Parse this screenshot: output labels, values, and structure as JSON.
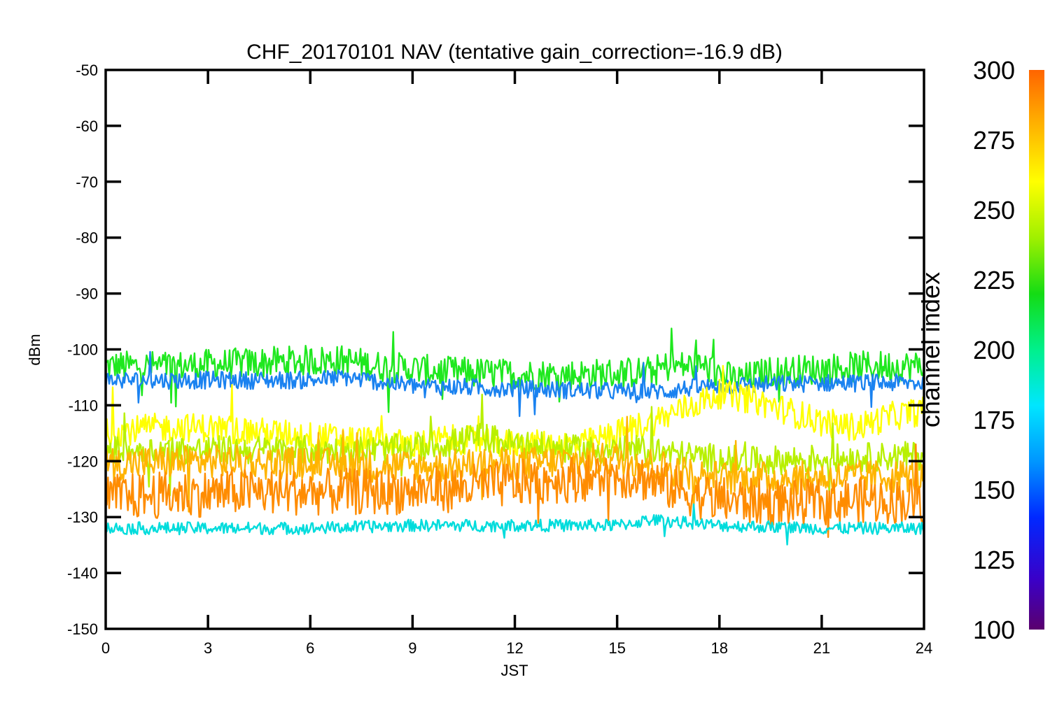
{
  "chart_data": {
    "type": "line",
    "title": "CHF_20170101 NAV (tentative gain_correction=-16.9 dB)",
    "xlabel": "JST",
    "ylabel": "dBm",
    "xlim": [
      0,
      24
    ],
    "ylim": [
      -150,
      -50
    ],
    "xticks": [
      "0",
      "3",
      "6",
      "9",
      "12",
      "15",
      "18",
      "21",
      "24"
    ],
    "yticks": [
      "-50",
      "-60",
      "-70",
      "-80",
      "-90",
      "-100",
      "-110",
      "-120",
      "-130",
      "-140",
      "-150"
    ],
    "colorbar": {
      "label": "channel index",
      "range": [
        100,
        300
      ],
      "ticks": [
        "300",
        "275",
        "250",
        "225",
        "200",
        "175",
        "150",
        "125",
        "100"
      ],
      "colormap": "rainbow"
    },
    "grid": false,
    "series": [
      {
        "channel": 245,
        "color": "#1fe81f",
        "x": [
          0,
          2,
          4,
          6,
          7,
          8,
          10,
          12,
          14,
          16,
          16.5,
          17.5,
          18.5,
          19.5,
          21,
          22.5,
          24
        ],
        "y": [
          -103,
          -103,
          -102.5,
          -102,
          -102,
          -103,
          -104,
          -104.5,
          -104.5,
          -104,
          -103,
          -103,
          -105.5,
          -104,
          -103.5,
          -103,
          -103
        ]
      },
      {
        "channel": 150,
        "color": "#1a82f0",
        "x": [
          0,
          3,
          6,
          7,
          9,
          12,
          15,
          16.5,
          17,
          18,
          21,
          24
        ],
        "y": [
          -105.5,
          -105.5,
          -105.5,
          -105,
          -106.5,
          -107,
          -107.5,
          -107.5,
          -107,
          -106.5,
          -106,
          -106
        ]
      },
      {
        "channel": 272,
        "color": "#ffff00",
        "x": [
          0,
          1.5,
          3,
          5,
          7,
          9,
          10,
          12,
          14,
          15,
          16,
          17,
          18,
          19,
          20,
          21,
          22,
          23,
          24
        ],
        "y": [
          -115,
          -114,
          -114,
          -115,
          -116,
          -117,
          -116,
          -117,
          -117,
          -115,
          -113,
          -110.5,
          -108,
          -109,
          -111,
          -113,
          -114,
          -112,
          -111
        ]
      },
      {
        "channel": 262,
        "color": "#b8f000",
        "x": [
          0,
          4,
          8,
          10,
          11,
          12,
          14,
          16,
          17,
          18,
          19,
          21,
          24
        ],
        "y": [
          -118,
          -118,
          -118,
          -117,
          -115.5,
          -117,
          -118,
          -118,
          -119,
          -119.5,
          -120,
          -119.5,
          -119
        ]
      },
      {
        "channel": 284,
        "color": "#ffb400",
        "x": [
          0,
          3,
          6,
          9,
          12,
          15,
          16,
          17,
          18,
          21,
          24
        ],
        "y": [
          -120.5,
          -120,
          -120.5,
          -121,
          -120.5,
          -119.5,
          -120.5,
          -122,
          -123,
          -123,
          -122.5
        ]
      },
      {
        "channel": 295,
        "color": "#ff8c00",
        "x": [
          0,
          2,
          4,
          6,
          8,
          10,
          12,
          14,
          15.5,
          17,
          18,
          20,
          22,
          24
        ],
        "y": [
          -126.5,
          -126,
          -125.5,
          -125.5,
          -125.5,
          -125,
          -124,
          -123,
          -122.5,
          -125.5,
          -127,
          -127.5,
          -127,
          -127
        ]
      },
      {
        "channel": 185,
        "color": "#00dcdc",
        "x": [
          0,
          3,
          6,
          9,
          12,
          15,
          16,
          18,
          21,
          24
        ],
        "y": [
          -132,
          -132,
          -132,
          -131.5,
          -131.5,
          -131.5,
          -130.5,
          -131.5,
          -132,
          -132
        ]
      }
    ]
  }
}
